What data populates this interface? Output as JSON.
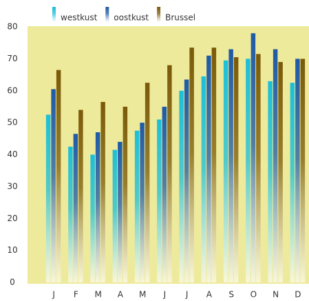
{
  "chart_data": {
    "type": "bar",
    "categories": [
      "J",
      "F",
      "M",
      "A",
      "M",
      "J",
      "J",
      "A",
      "S",
      "O",
      "N",
      "D"
    ],
    "series": [
      {
        "name": "westkust",
        "color": "#1bbfd8",
        "values": [
          52.5,
          42.5,
          40,
          41.5,
          47.5,
          51,
          60,
          64.5,
          69.5,
          70,
          63,
          62.5
        ]
      },
      {
        "name": "oostkust",
        "color": "#1f5aa6",
        "values": [
          60.5,
          46.5,
          47,
          44,
          50,
          55,
          63.5,
          71,
          73,
          78,
          73,
          70
        ]
      },
      {
        "name": "Brussel",
        "color": "#7a5a08",
        "values": [
          66.5,
          54,
          56.5,
          55,
          62.5,
          68,
          73.5,
          73.5,
          70.5,
          71.5,
          69,
          70
        ]
      }
    ],
    "ylim": [
      0,
      80
    ],
    "yticks": [
      0,
      10,
      20,
      30,
      40,
      50,
      60,
      70,
      80
    ],
    "grid": false
  }
}
